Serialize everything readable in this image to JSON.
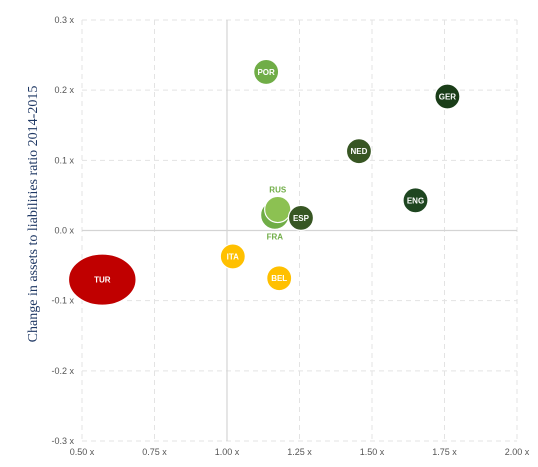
{
  "chart_data": {
    "type": "scatter",
    "title": "",
    "xlabel": "",
    "ylabel": "Change in assets to liabilities ratio 2014-2015",
    "xlim": [
      0.5,
      2.0
    ],
    "ylim": [
      -0.3,
      0.3
    ],
    "x_ticks": [
      0.5,
      0.75,
      1.0,
      1.25,
      1.5,
      1.75,
      2.0
    ],
    "x_tick_labels": [
      "0.50 x",
      "0.75 x",
      "1.00 x",
      "1.25 x",
      "1.50 x",
      "1.75 x",
      "2.00 x"
    ],
    "y_ticks": [
      0.3,
      0.2,
      0.1,
      0.0,
      -0.1,
      -0.2,
      -0.3
    ],
    "y_tick_labels": [
      "0.3 x",
      "0.2 x",
      "0.1 x",
      "0.0 x",
      "-0.1 x",
      "-0.2 x",
      "-0.3 x"
    ],
    "grid": true,
    "reference_lines": {
      "x": 1.0,
      "y": 0.0
    },
    "points": [
      {
        "label": "TUR",
        "x": 0.57,
        "y": -0.07,
        "size": 4.2,
        "color": "#c00000",
        "label_color": "#ffffff",
        "label_position": "center"
      },
      {
        "label": "ITA",
        "x": 1.02,
        "y": -0.037,
        "size": 1.0,
        "color": "#ffc000",
        "label_color": "#ffffff",
        "label_position": "center"
      },
      {
        "label": "BEL",
        "x": 1.18,
        "y": -0.068,
        "size": 1.0,
        "color": "#ffc000",
        "label_color": "#ffffff",
        "label_position": "center"
      },
      {
        "label": "FRA",
        "x": 1.165,
        "y": 0.022,
        "size": 1.3,
        "color": "#70ad47",
        "label_color": "#70ad47",
        "label_position": "below"
      },
      {
        "label": "RUS",
        "x": 1.175,
        "y": 0.03,
        "size": 1.1,
        "color": "#8cc152",
        "label_color": "#70ad47",
        "label_position": "above"
      },
      {
        "label": "ESP",
        "x": 1.255,
        "y": 0.018,
        "size": 1.0,
        "color": "#375623",
        "label_color": "#ffffff",
        "label_position": "center"
      },
      {
        "label": "POR",
        "x": 1.135,
        "y": 0.226,
        "size": 1.0,
        "color": "#70ad47",
        "label_color": "#ffffff",
        "label_position": "center"
      },
      {
        "label": "NED",
        "x": 1.455,
        "y": 0.113,
        "size": 1.0,
        "color": "#375623",
        "label_color": "#ffffff",
        "label_position": "center"
      },
      {
        "label": "ENG",
        "x": 1.65,
        "y": 0.043,
        "size": 1.0,
        "color": "#1e4620",
        "label_color": "#ffffff",
        "label_position": "center"
      },
      {
        "label": "GER",
        "x": 1.76,
        "y": 0.191,
        "size": 1.0,
        "color": "#1a3d18",
        "label_color": "#ffffff",
        "label_position": "center"
      }
    ]
  }
}
